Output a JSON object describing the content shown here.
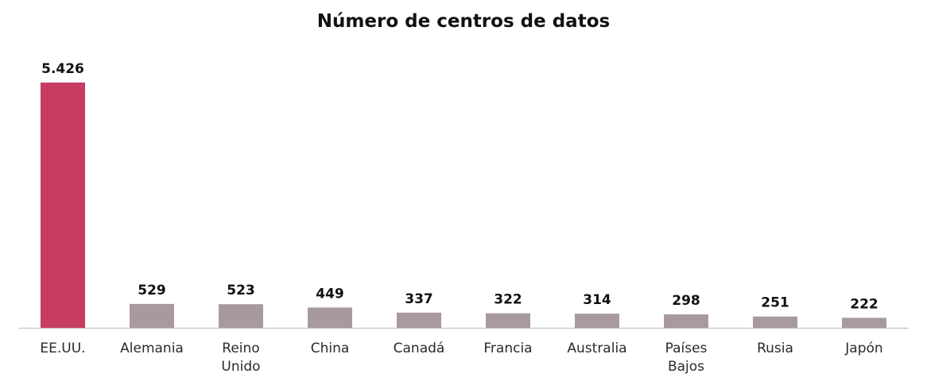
{
  "chart_data": {
    "type": "bar",
    "title": "Número de centros de datos",
    "categories": [
      [
        "EE.UU."
      ],
      [
        "Alemania"
      ],
      [
        "Reino",
        "Unido"
      ],
      [
        "China"
      ],
      [
        "Canadá"
      ],
      [
        "Francia"
      ],
      [
        "Australia"
      ],
      [
        "Países",
        "Bajos"
      ],
      [
        "Rusia"
      ],
      [
        "Japón"
      ]
    ],
    "values": [
      5426,
      529,
      523,
      449,
      337,
      322,
      314,
      298,
      251,
      222
    ],
    "value_labels": [
      "5.426",
      "529",
      "523",
      "449",
      "337",
      "322",
      "314",
      "298",
      "251",
      "222"
    ],
    "ylim": [
      0,
      5426
    ],
    "grid": false,
    "legend": "none",
    "colors": {
      "highlight": "#c63c63",
      "default": "#a89a9c",
      "axis": "#cccccc"
    },
    "highlight_index": 0
  }
}
